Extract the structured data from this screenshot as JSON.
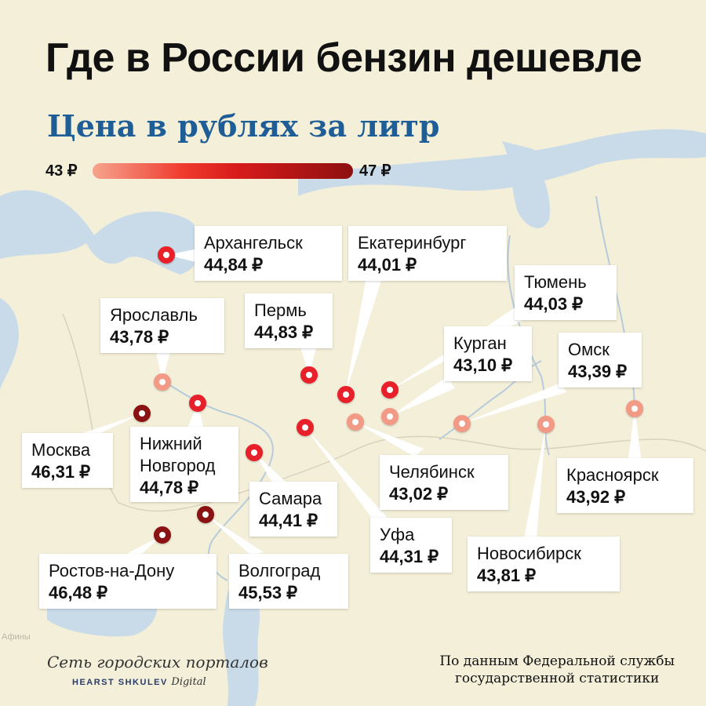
{
  "title": "Где в России бензин дешевле",
  "subtitle": "Цена в рублях за литр",
  "scale": {
    "min_label": "43 ₽",
    "max_label": "47 ₽"
  },
  "colors": {
    "light": "#f29a86",
    "mid": "#e8202a",
    "dark": "#8b1212",
    "subtitle": "#1f5d96",
    "background": "#f3efd9"
  },
  "cities": [
    {
      "name": "Архангельск",
      "price": "44,84 ₽"
    },
    {
      "name": "Екатеринбург",
      "price": "44,01 ₽"
    },
    {
      "name": "Тюмень",
      "price": "44,03 ₽"
    },
    {
      "name": "Ярославль",
      "price": "43,78 ₽"
    },
    {
      "name": "Пермь",
      "price": "44,83 ₽"
    },
    {
      "name": "Курган",
      "price": "43,10 ₽"
    },
    {
      "name": "Омск",
      "price": "43,39 ₽"
    },
    {
      "name": "Москва",
      "price": "46,31 ₽"
    },
    {
      "name_line1": "Нижний",
      "name_line2": "Новгород",
      "price": "44,78 ₽"
    },
    {
      "name": "Самара",
      "price": "44,41 ₽"
    },
    {
      "name": "Челябинск",
      "price": "43,02 ₽"
    },
    {
      "name": "Красноярск",
      "price": "43,92 ₽"
    },
    {
      "name": "Уфа",
      "price": "44,31 ₽"
    },
    {
      "name": "Новосибирск",
      "price": "43,81 ₽"
    },
    {
      "name": "Ростов-на-Дону",
      "price": "46,48 ₽"
    },
    {
      "name": "Волгоград",
      "price": "45,53 ₽"
    }
  ],
  "footer": {
    "brand_line1": "Сеть городских порталов",
    "brand_line2": "HEARST SHKULEV",
    "brand_line2_suffix": "Digital",
    "source_line1": "По данным Федеральной службы",
    "source_line2": "государственной статистики"
  },
  "map_label": "Афины"
}
